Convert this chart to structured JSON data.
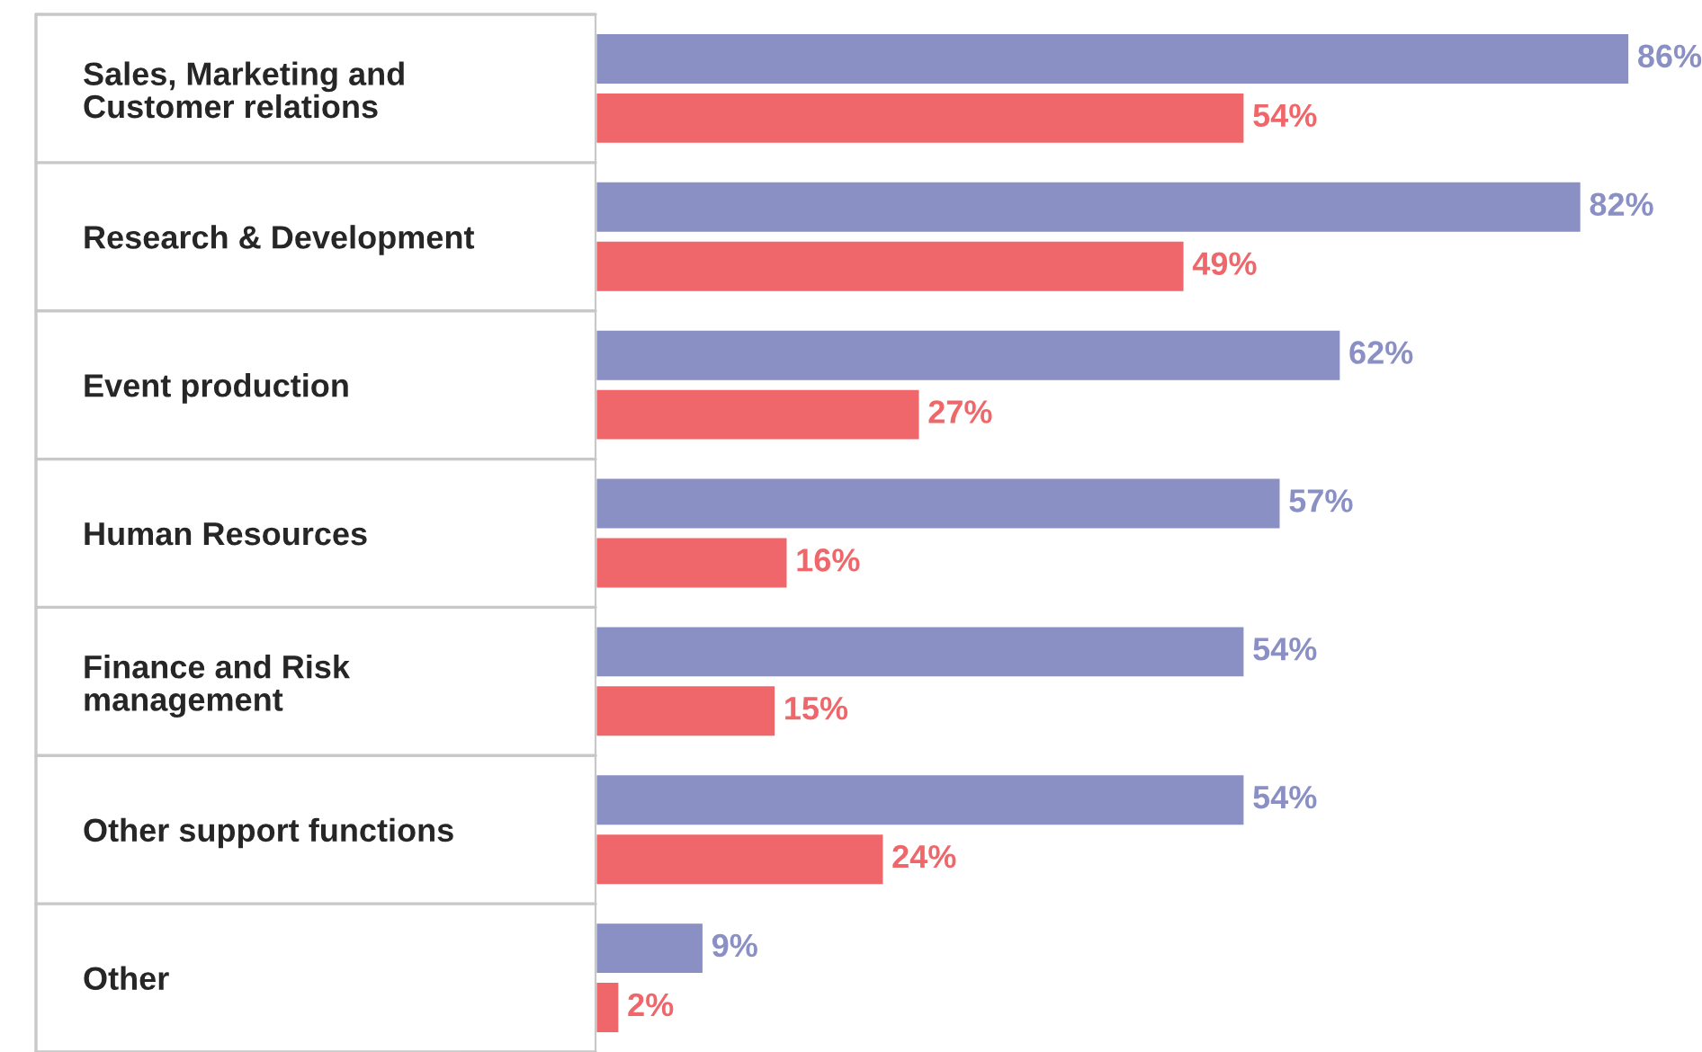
{
  "chart_data": {
    "type": "bar",
    "orientation": "horizontal",
    "categories": [
      "Sales, Marketing and\nCustomer relations",
      "Research & Development",
      "Event production",
      "Human Resources",
      "Finance and Risk\nmanagement",
      "Other support functions",
      "Other"
    ],
    "series": [
      {
        "color": "#8a8fc4",
        "values": [
          86,
          82,
          62,
          57,
          54,
          54,
          9
        ],
        "value_labels": [
          "86%",
          "82%",
          "62%",
          "57%",
          "54%",
          "54%",
          "9%"
        ]
      },
      {
        "color": "#ef676a",
        "values": [
          54,
          49,
          27,
          16,
          15,
          24,
          2
        ],
        "value_labels": [
          "54%",
          "49%",
          "27%",
          "16%",
          "15%",
          "24%",
          "2%"
        ]
      }
    ],
    "legend": false,
    "grid": false
  }
}
